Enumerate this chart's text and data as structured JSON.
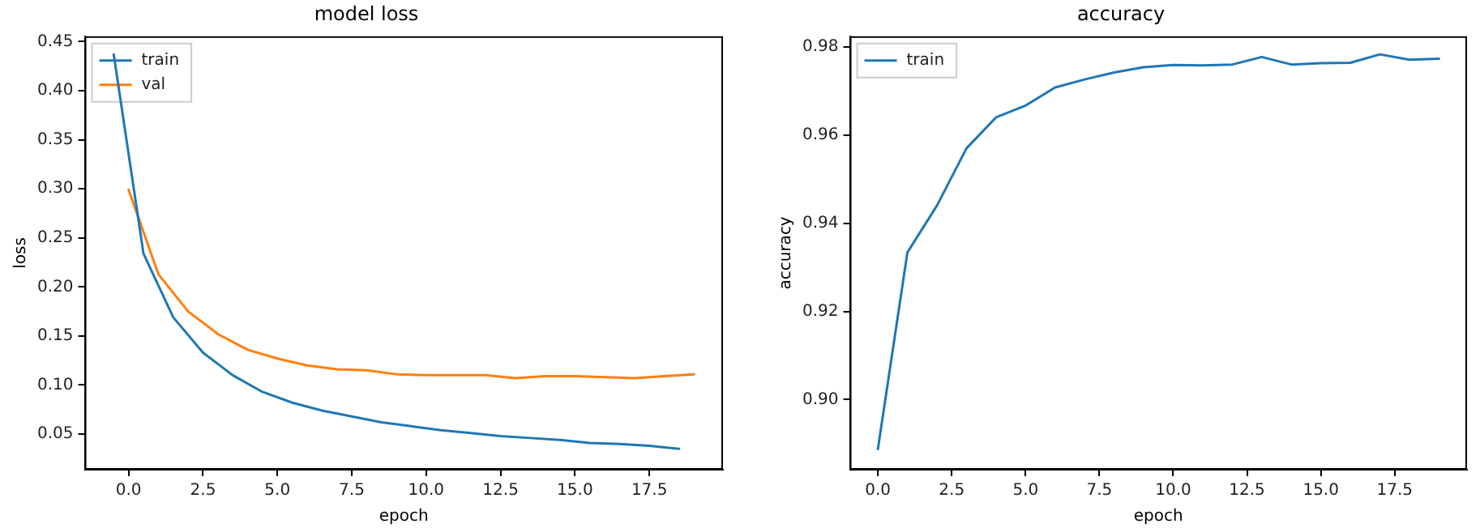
{
  "chart_data": [
    {
      "type": "line",
      "title": "model loss",
      "xlabel": "epoch",
      "ylabel": "loss",
      "legend": "top left",
      "grid": false,
      "marker": "none",
      "line_style": "solid",
      "xlim": [
        -1.475,
        19.975
      ],
      "ylim": [
        0.0137,
        0.4555
      ],
      "xticks": [
        {
          "value": 0,
          "label": "0.0"
        },
        {
          "value": 2.5,
          "label": "2.5"
        },
        {
          "value": 5,
          "label": "5.0"
        },
        {
          "value": 7.5,
          "label": "7.5"
        },
        {
          "value": 10,
          "label": "10.0"
        },
        {
          "value": 12.5,
          "label": "12.5"
        },
        {
          "value": 15,
          "label": "15.0"
        },
        {
          "value": 17.5,
          "label": "17.5"
        }
      ],
      "yticks": [
        {
          "value": 0.05,
          "label": "0.05"
        },
        {
          "value": 0.1,
          "label": "0.10"
        },
        {
          "value": 0.15,
          "label": "0.15"
        },
        {
          "value": 0.2,
          "label": "0.20"
        },
        {
          "value": 0.25,
          "label": "0.25"
        },
        {
          "value": 0.3,
          "label": "0.30"
        },
        {
          "value": 0.35,
          "label": "0.35"
        },
        {
          "value": 0.4,
          "label": "0.40"
        },
        {
          "value": 0.45,
          "label": "0.45"
        }
      ],
      "series": [
        {
          "name": "train",
          "color": "#1f77b4",
          "x": [
            -0.5,
            0.5,
            1.5,
            2.5,
            3.5,
            4.5,
            5.5,
            6.5,
            7.5,
            8.5,
            9.5,
            10.5,
            11.5,
            12.5,
            13.5,
            14.5,
            15.5,
            16.5,
            17.5,
            18.5
          ],
          "values": [
            0.437,
            0.234,
            0.169,
            0.133,
            0.11,
            0.093,
            0.082,
            0.074,
            0.068,
            0.062,
            0.058,
            0.054,
            0.051,
            0.048,
            0.046,
            0.044,
            0.041,
            0.04,
            0.038,
            0.035
          ]
        },
        {
          "name": "val",
          "color": "#ff7f0e",
          "x": [
            0,
            1,
            2,
            3,
            4,
            5,
            6,
            7,
            8,
            9,
            10,
            11,
            12,
            13,
            14,
            15,
            16,
            17,
            18,
            19
          ],
          "values": [
            0.299,
            0.213,
            0.175,
            0.152,
            0.136,
            0.127,
            0.12,
            0.116,
            0.115,
            0.111,
            0.11,
            0.11,
            0.11,
            0.107,
            0.109,
            0.109,
            0.108,
            0.107,
            0.109,
            0.111
          ]
        }
      ]
    },
    {
      "type": "line",
      "title": "accuracy",
      "xlabel": "epoch",
      "ylabel": "accuracy",
      "legend": "top left",
      "grid": false,
      "marker": "none",
      "line_style": "solid",
      "xlim": [
        -0.95,
        19.95
      ],
      "ylim": [
        0.8841,
        0.9824
      ],
      "xticks": [
        {
          "value": 0,
          "label": "0.0"
        },
        {
          "value": 2.5,
          "label": "2.5"
        },
        {
          "value": 5,
          "label": "5.0"
        },
        {
          "value": 7.5,
          "label": "7.5"
        },
        {
          "value": 10,
          "label": "10.0"
        },
        {
          "value": 12.5,
          "label": "12.5"
        },
        {
          "value": 15,
          "label": "15.0"
        },
        {
          "value": 17.5,
          "label": "17.5"
        }
      ],
      "yticks": [
        {
          "value": 0.9,
          "label": "0.90"
        },
        {
          "value": 0.92,
          "label": "0.92"
        },
        {
          "value": 0.94,
          "label": "0.94"
        },
        {
          "value": 0.96,
          "label": "0.96"
        },
        {
          "value": 0.98,
          "label": "0.98"
        }
      ],
      "series": [
        {
          "name": "train",
          "color": "#1f77b4",
          "x": [
            0,
            1,
            2,
            3,
            4,
            5,
            6,
            7,
            8,
            9,
            10,
            11,
            12,
            13,
            14,
            15,
            16,
            17,
            18,
            19
          ],
          "values": [
            0.8888,
            0.9334,
            0.944,
            0.957,
            0.964,
            0.9667,
            0.9708,
            0.9726,
            0.9742,
            0.9754,
            0.9759,
            0.9758,
            0.976,
            0.9777,
            0.976,
            0.9763,
            0.9764,
            0.9783,
            0.9771,
            0.9773
          ]
        }
      ]
    }
  ]
}
